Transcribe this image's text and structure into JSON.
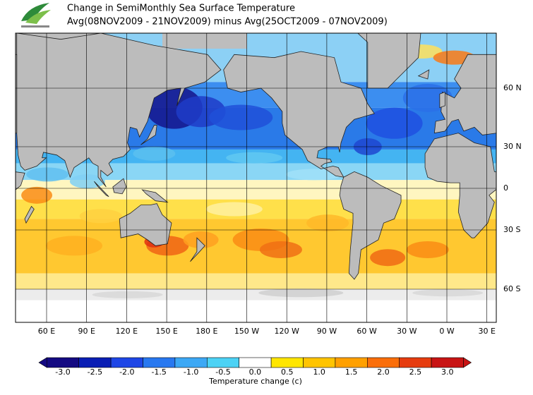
{
  "header": {
    "title": "Change in SemiMonthly Sea Surface Temperature",
    "subtitle": "Avg(08NOV2009 - 21NOV2009) minus Avg(25OCT2009 - 07NOV2009)"
  },
  "map": {
    "lon_labels": [
      "60 E",
      "90 E",
      "120 E",
      "150 E",
      "180 E",
      "150 W",
      "120 W",
      "90 W",
      "60 W",
      "30 W",
      "0 W",
      "30 E"
    ],
    "lat_labels": [
      "60 N",
      "30 N",
      "0",
      "30 S",
      "60 S"
    ]
  },
  "colorbar": {
    "label": "Temperature change  (c)",
    "ticks": [
      {
        "value": -3,
        "label": "-3.0"
      },
      {
        "value": -2.5,
        "label": "-2.5"
      },
      {
        "value": -2,
        "label": "-2.0"
      },
      {
        "value": -1.5,
        "label": "-1.5"
      },
      {
        "value": -1,
        "label": "-1.0"
      },
      {
        "value": -0.5,
        "label": "-0.5"
      },
      {
        "value": 0,
        "label": "0.0"
      },
      {
        "value": 0.5,
        "label": "0.5"
      },
      {
        "value": 1,
        "label": "1.0"
      },
      {
        "value": 1.5,
        "label": "1.5"
      },
      {
        "value": 2,
        "label": "2.0"
      },
      {
        "value": 2.5,
        "label": "2.5"
      },
      {
        "value": 3,
        "label": "3.0"
      }
    ],
    "colors": [
      "#140a82",
      "#0a1eb4",
      "#1e46e6",
      "#2878f0",
      "#3ca8f5",
      "#4cd2f5",
      "#ffffff",
      "#ffe600",
      "#ffc400",
      "#ffa000",
      "#fa6e0a",
      "#e63c0f",
      "#c81414"
    ]
  }
}
